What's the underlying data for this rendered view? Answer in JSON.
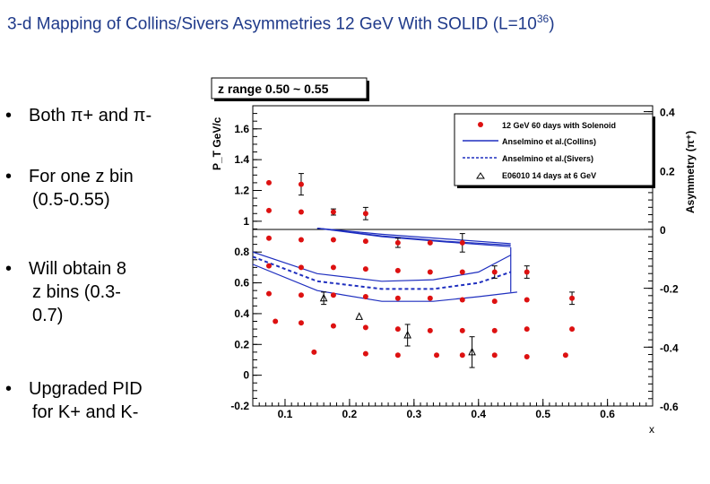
{
  "slide": {
    "title": "3-d Mapping of Collins/Sivers Asymmetries 12 GeV With SOLID (L=10",
    "title_sup": "36",
    "title_end": ")",
    "bullets": [
      {
        "l1": "Both π+ and π-"
      },
      {
        "l1": "For one z bin",
        "l2": "(0.5-0.55)"
      },
      {
        "l1": "Will obtain 8",
        "l2": "z bins (0.3-",
        "l3": "0.7)"
      },
      {
        "l1": "Upgraded PID",
        "l2": "for K+ and K-"
      }
    ],
    "bullet_char": "•"
  },
  "chart_data": {
    "type": "scatter",
    "title": "z range 0.50 ~ 0.55",
    "xlabel": "x",
    "ylabel": "P_T GeV/c",
    "ylabel_right": "Asymmetry (π⁺)",
    "xlim": [
      0.05,
      0.67
    ],
    "ylim": [
      -0.2,
      1.75
    ],
    "ylim_right": [
      -0.6,
      0.42
    ],
    "x_ticks": [
      0.1,
      0.2,
      0.3,
      0.4,
      0.5,
      0.6
    ],
    "y_ticks": [
      -0.2,
      0,
      0.2,
      0.4,
      0.6,
      0.8,
      1,
      1.2,
      1.4,
      1.6
    ],
    "y_ticks_right": [
      -0.6,
      -0.4,
      -0.2,
      0,
      0.2,
      0.4
    ],
    "legend": [
      {
        "label": "12 GeV 60 days with Solenoid",
        "style": "red-dot"
      },
      {
        "label": "Anselmino et al.(Collins)",
        "style": "solid-blue"
      },
      {
        "label": "Anselmino et al.(Sivers)",
        "style": "dashed-blue"
      },
      {
        "label": "E06010 14 days at 6 GeV",
        "style": "open-triangle"
      }
    ],
    "series": [
      {
        "name": "12 GeV 60 days with Solenoid",
        "points": [
          [
            0.075,
            1.25
          ],
          [
            0.075,
            1.07
          ],
          [
            0.075,
            0.89
          ],
          [
            0.075,
            0.71
          ],
          [
            0.075,
            0.53
          ],
          [
            0.085,
            0.35
          ],
          [
            0.125,
            1.24
          ],
          [
            0.125,
            1.06
          ],
          [
            0.125,
            0.88
          ],
          [
            0.125,
            0.7
          ],
          [
            0.125,
            0.52
          ],
          [
            0.125,
            0.34
          ],
          [
            0.175,
            1.06
          ],
          [
            0.175,
            0.88
          ],
          [
            0.175,
            0.7
          ],
          [
            0.175,
            0.52
          ],
          [
            0.175,
            0.32
          ],
          [
            0.145,
            0.15
          ],
          [
            0.225,
            1.05
          ],
          [
            0.225,
            0.87
          ],
          [
            0.225,
            0.69
          ],
          [
            0.225,
            0.51
          ],
          [
            0.225,
            0.31
          ],
          [
            0.225,
            0.14
          ],
          [
            0.275,
            0.86
          ],
          [
            0.275,
            0.68
          ],
          [
            0.275,
            0.5
          ],
          [
            0.275,
            0.3
          ],
          [
            0.275,
            0.13
          ],
          [
            0.325,
            0.86
          ],
          [
            0.325,
            0.67
          ],
          [
            0.325,
            0.5
          ],
          [
            0.325,
            0.29
          ],
          [
            0.335,
            0.13
          ],
          [
            0.375,
            0.86
          ],
          [
            0.375,
            0.67
          ],
          [
            0.375,
            0.49
          ],
          [
            0.375,
            0.29
          ],
          [
            0.375,
            0.13
          ],
          [
            0.425,
            0.67
          ],
          [
            0.425,
            0.48
          ],
          [
            0.425,
            0.29
          ],
          [
            0.425,
            0.13
          ],
          [
            0.475,
            0.67
          ],
          [
            0.475,
            0.49
          ],
          [
            0.475,
            0.3
          ],
          [
            0.475,
            0.12
          ],
          [
            0.545,
            0.5
          ],
          [
            0.545,
            0.3
          ],
          [
            0.535,
            0.13
          ]
        ]
      },
      {
        "name": "E06010 14 days at 6 GeV",
        "points": [
          [
            0.16,
            0.5
          ],
          [
            0.215,
            0.38
          ],
          [
            0.29,
            0.26
          ],
          [
            0.39,
            0.15
          ]
        ]
      }
    ],
    "error_bars_y": [
      [
        0.125,
        1.24,
        0.07
      ],
      [
        0.175,
        1.06,
        0.02
      ],
      [
        0.225,
        1.05,
        0.04
      ],
      [
        0.275,
        0.86,
        0.03
      ],
      [
        0.375,
        0.86,
        0.06
      ],
      [
        0.425,
        0.67,
        0.04
      ],
      [
        0.475,
        0.67,
        0.04
      ],
      [
        0.545,
        0.5,
        0.04
      ],
      [
        0.16,
        0.5,
        0.04
      ],
      [
        0.29,
        0.26,
        0.07
      ],
      [
        0.39,
        0.15,
        0.1
      ]
    ],
    "horizontal_line_right_axis": 0,
    "curves": [
      {
        "name": "Collins upper",
        "style": "solid",
        "points": [
          [
            0.15,
            0.955
          ],
          [
            0.25,
            0.915
          ],
          [
            0.35,
            0.885
          ],
          [
            0.45,
            0.855
          ]
        ]
      },
      {
        "name": "Collins mid",
        "style": "solid",
        "points": [
          [
            0.15,
            0.955
          ],
          [
            0.25,
            0.905
          ],
          [
            0.35,
            0.87
          ],
          [
            0.45,
            0.845
          ]
        ]
      },
      {
        "name": "Collins lower",
        "style": "solid",
        "points": [
          [
            0.15,
            0.955
          ],
          [
            0.25,
            0.9
          ],
          [
            0.35,
            0.865
          ],
          [
            0.45,
            0.835
          ]
        ]
      },
      {
        "name": "Sivers upper band",
        "style": "solid",
        "points": [
          [
            0.05,
            0.8
          ],
          [
            0.15,
            0.66
          ],
          [
            0.25,
            0.61
          ],
          [
            0.33,
            0.62
          ],
          [
            0.4,
            0.67
          ],
          [
            0.45,
            0.78
          ]
        ]
      },
      {
        "name": "Sivers central",
        "style": "dashed",
        "points": [
          [
            0.05,
            0.77
          ],
          [
            0.15,
            0.61
          ],
          [
            0.25,
            0.56
          ],
          [
            0.33,
            0.56
          ],
          [
            0.4,
            0.6
          ],
          [
            0.45,
            0.67
          ]
        ]
      },
      {
        "name": "Sivers lower band",
        "style": "solid",
        "points": [
          [
            0.05,
            0.72
          ],
          [
            0.15,
            0.55
          ],
          [
            0.25,
            0.48
          ],
          [
            0.33,
            0.48
          ],
          [
            0.4,
            0.51
          ],
          [
            0.46,
            0.54
          ]
        ]
      }
    ]
  }
}
